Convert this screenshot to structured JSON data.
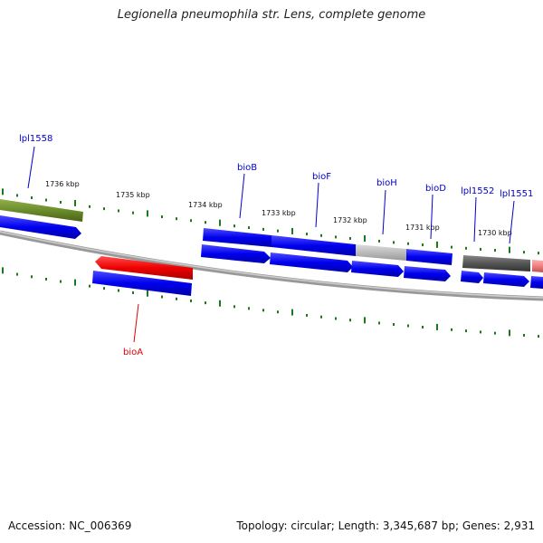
{
  "title": "Legionella pneumophila str. Lens, complete genome",
  "footer": {
    "accession": "Accession: NC_006369",
    "summary": "Topology: circular; Length: 3,345,687 bp; Genes: 2,931"
  },
  "colors": {
    "backbone": "#888888",
    "tick": "#1a7a1a",
    "gene_forward": "#0000ee",
    "gene_highlight": "#ee0000",
    "gene_other": "#6b8c2a",
    "gene_gray": "#666666",
    "gene_lightgray": "#bbbbbb",
    "gene_pink": "#f08080",
    "label_blue": "#0000cc",
    "label_red": "#dd0000"
  },
  "scale_labels": [
    "1736 kbp",
    "1735 kbp",
    "1734 kbp",
    "1733 kbp",
    "1732 kbp",
    "1731 kbp",
    "1730 kbp"
  ],
  "gene_labels": [
    {
      "name": "lpl1558",
      "color": "label_blue"
    },
    {
      "name": "bioB",
      "color": "label_blue"
    },
    {
      "name": "bioF",
      "color": "label_blue"
    },
    {
      "name": "bioH",
      "color": "label_blue"
    },
    {
      "name": "bioD",
      "color": "label_blue"
    },
    {
      "name": "lpl1552",
      "color": "label_blue"
    },
    {
      "name": "lpl1551",
      "color": "label_blue"
    },
    {
      "name": "bioA",
      "color": "label_red"
    }
  ]
}
